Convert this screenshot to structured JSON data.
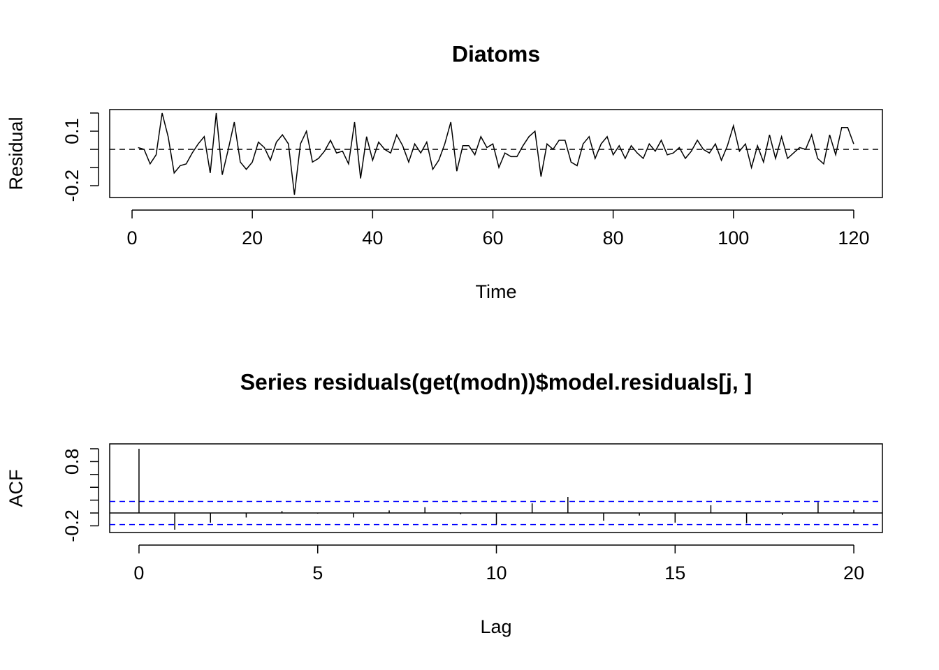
{
  "chart_data": [
    {
      "type": "line",
      "title": "Diatoms",
      "xlabel": "Time",
      "ylabel": "Residual",
      "color": "#000000",
      "x": [
        1,
        2,
        3,
        4,
        5,
        6,
        7,
        8,
        9,
        10,
        11,
        12,
        13,
        14,
        15,
        16,
        17,
        18,
        19,
        20,
        21,
        22,
        23,
        24,
        25,
        26,
        27,
        28,
        29,
        30,
        31,
        32,
        33,
        34,
        35,
        36,
        37,
        38,
        39,
        40,
        41,
        42,
        43,
        44,
        45,
        46,
        47,
        48,
        49,
        50,
        51,
        52,
        53,
        54,
        55,
        56,
        57,
        58,
        59,
        60,
        61,
        62,
        63,
        64,
        65,
        66,
        67,
        68,
        69,
        70,
        71,
        72,
        73,
        74,
        75,
        76,
        77,
        78,
        79,
        80,
        81,
        82,
        83,
        84,
        85,
        86,
        87,
        88,
        89,
        90,
        91,
        92,
        93,
        94,
        95,
        96,
        97,
        98,
        99,
        100,
        101,
        102,
        103,
        104,
        105,
        106,
        107,
        108,
        109,
        110,
        111,
        112,
        113,
        114,
        115,
        116,
        117,
        118,
        119,
        120
      ],
      "values": [
        0.01,
        0.0,
        -0.08,
        -0.03,
        0.2,
        0.07,
        -0.13,
        -0.09,
        -0.08,
        -0.02,
        0.03,
        0.07,
        -0.13,
        0.2,
        -0.14,
        0.0,
        0.15,
        -0.07,
        -0.11,
        -0.07,
        0.04,
        0.01,
        -0.06,
        0.04,
        0.08,
        0.03,
        -0.25,
        0.03,
        0.1,
        -0.07,
        -0.05,
        -0.01,
        0.05,
        -0.02,
        -0.01,
        -0.08,
        0.15,
        -0.16,
        0.07,
        -0.06,
        0.04,
        0.0,
        -0.02,
        0.08,
        0.02,
        -0.07,
        0.03,
        -0.02,
        0.04,
        -0.11,
        -0.06,
        0.03,
        0.15,
        -0.12,
        0.02,
        0.02,
        -0.03,
        0.07,
        0.01,
        0.03,
        -0.1,
        -0.02,
        -0.04,
        -0.04,
        0.02,
        0.07,
        0.1,
        -0.15,
        0.03,
        0.0,
        0.05,
        0.05,
        -0.07,
        -0.09,
        0.03,
        0.07,
        -0.05,
        0.03,
        0.07,
        -0.03,
        0.02,
        -0.05,
        0.02,
        -0.02,
        -0.05,
        0.03,
        -0.01,
        0.05,
        -0.03,
        -0.02,
        0.01,
        -0.05,
        -0.01,
        0.05,
        0.0,
        -0.02,
        0.03,
        -0.06,
        0.02,
        0.13,
        -0.01,
        0.03,
        -0.1,
        0.02,
        -0.07,
        0.08,
        -0.05,
        0.07,
        -0.05,
        -0.02,
        0.01,
        0.0,
        0.08,
        -0.05,
        -0.08,
        0.08,
        -0.03,
        0.12,
        0.12,
        0.03
      ],
      "xlim": [
        -3.72,
        124.77
      ],
      "xticks": [
        0,
        20,
        40,
        60,
        80,
        100,
        120
      ],
      "ylim": [
        -0.265,
        0.219
      ],
      "yticks": [
        -0.2,
        0.1
      ],
      "minor_yticks": [
        -0.1,
        0,
        0.2
      ],
      "reference_line": 0,
      "reference_dashed": true
    },
    {
      "type": "acf",
      "title": "Series  residuals(get(modn))$model.residuals[j, ]",
      "xlabel": "Lag",
      "ylabel": "ACF",
      "color": "#000000",
      "x": [
        0,
        1,
        2,
        3,
        4,
        5,
        6,
        7,
        8,
        9,
        10,
        11,
        12,
        13,
        14,
        15,
        16,
        17,
        18,
        19,
        20
      ],
      "values": [
        1.0,
        -0.26,
        -0.15,
        -0.07,
        0.03,
        -0.01,
        -0.07,
        0.04,
        0.09,
        -0.02,
        -0.18,
        0.15,
        0.25,
        -0.12,
        -0.04,
        -0.15,
        0.12,
        -0.16,
        -0.03,
        0.17,
        0.05
      ],
      "xlim": [
        -0.82,
        20.8
      ],
      "xticks": [
        0,
        5,
        10,
        15,
        20
      ],
      "ylim": [
        -0.304,
        1.076
      ],
      "yticks": [
        -0.2,
        0.8
      ],
      "minor_yticks": [
        0,
        0.2,
        0.4,
        0.6,
        1.0
      ],
      "reference_line": 0,
      "reference_dashed": false,
      "conf_limits": [
        -0.18,
        0.18
      ],
      "conf_color": "#0000ff"
    }
  ]
}
